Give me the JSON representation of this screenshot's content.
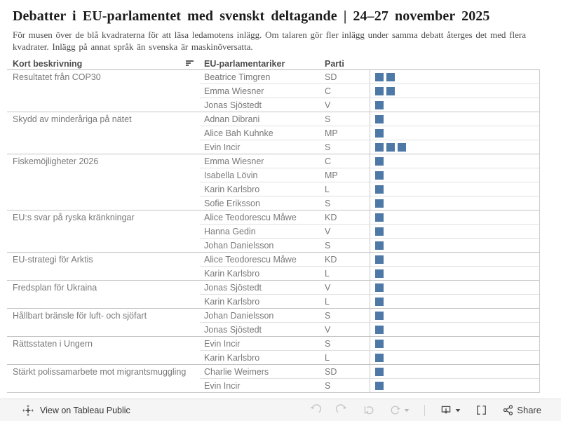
{
  "header": {
    "title": "Debatter i EU-parlamentet med svenskt deltagande | 24–27 november 2025",
    "subtitle": "För musen över de blå kvadraterna för att läsa ledamotens inlägg. Om talaren gör fler inlägg under samma debatt återges det med flera kvadrater. Inlägg på annat språk än svenska är maskinöversatta."
  },
  "table": {
    "columns": [
      "Kort beskrivning",
      "EU-parlamentariker",
      "Parti"
    ],
    "square_color": "#4e79a7",
    "groups": [
      {
        "debate": "Resultatet från COP30",
        "members": [
          {
            "name": "Beatrice Timgren",
            "party": "SD",
            "squares": 2
          },
          {
            "name": "Emma Wiesner",
            "party": "C",
            "squares": 2
          },
          {
            "name": "Jonas Sjöstedt",
            "party": "V",
            "squares": 1
          }
        ]
      },
      {
        "debate": "Skydd av minderåriga på nätet",
        "members": [
          {
            "name": "Adnan Dibrani",
            "party": "S",
            "squares": 1
          },
          {
            "name": "Alice Bah Kuhnke",
            "party": "MP",
            "squares": 1
          },
          {
            "name": "Evin Incir",
            "party": "S",
            "squares": 3
          }
        ]
      },
      {
        "debate": "Fiskemöjligheter 2026",
        "members": [
          {
            "name": "Emma Wiesner",
            "party": "C",
            "squares": 1
          },
          {
            "name": "Isabella Lövin",
            "party": "MP",
            "squares": 1
          },
          {
            "name": "Karin Karlsbro",
            "party": "L",
            "squares": 1
          },
          {
            "name": "Sofie Eriksson",
            "party": "S",
            "squares": 1
          }
        ]
      },
      {
        "debate": "EU:s svar på ryska kränkningar",
        "members": [
          {
            "name": "Alice Teodorescu Måwe",
            "party": "KD",
            "squares": 1
          },
          {
            "name": "Hanna Gedin",
            "party": "V",
            "squares": 1
          },
          {
            "name": "Johan Danielsson",
            "party": "S",
            "squares": 1
          }
        ]
      },
      {
        "debate": "EU-strategi för Arktis",
        "members": [
          {
            "name": "Alice Teodorescu Måwe",
            "party": "KD",
            "squares": 1
          },
          {
            "name": "Karin Karlsbro",
            "party": "L",
            "squares": 1
          }
        ]
      },
      {
        "debate": "Fredsplan för Ukraina",
        "members": [
          {
            "name": "Jonas Sjöstedt",
            "party": "V",
            "squares": 1
          },
          {
            "name": "Karin Karlsbro",
            "party": "L",
            "squares": 1
          }
        ]
      },
      {
        "debate": "Hållbart bränsle för luft- och sjöfart",
        "members": [
          {
            "name": "Johan Danielsson",
            "party": "S",
            "squares": 1
          },
          {
            "name": "Jonas Sjöstedt",
            "party": "V",
            "squares": 1
          }
        ]
      },
      {
        "debate": "Rättsstaten i Ungern",
        "members": [
          {
            "name": "Evin Incir",
            "party": "S",
            "squares": 1
          },
          {
            "name": "Karin Karlsbro",
            "party": "L",
            "squares": 1
          }
        ]
      },
      {
        "debate": "Stärkt polissamarbete mot migrantsmuggling",
        "members": [
          {
            "name": "Charlie Weimers",
            "party": "SD",
            "squares": 1
          },
          {
            "name": "Evin Incir",
            "party": "S",
            "squares": 1
          }
        ]
      }
    ]
  },
  "toolbar": {
    "view_label": "View on Tableau Public",
    "share_label": "Share"
  }
}
